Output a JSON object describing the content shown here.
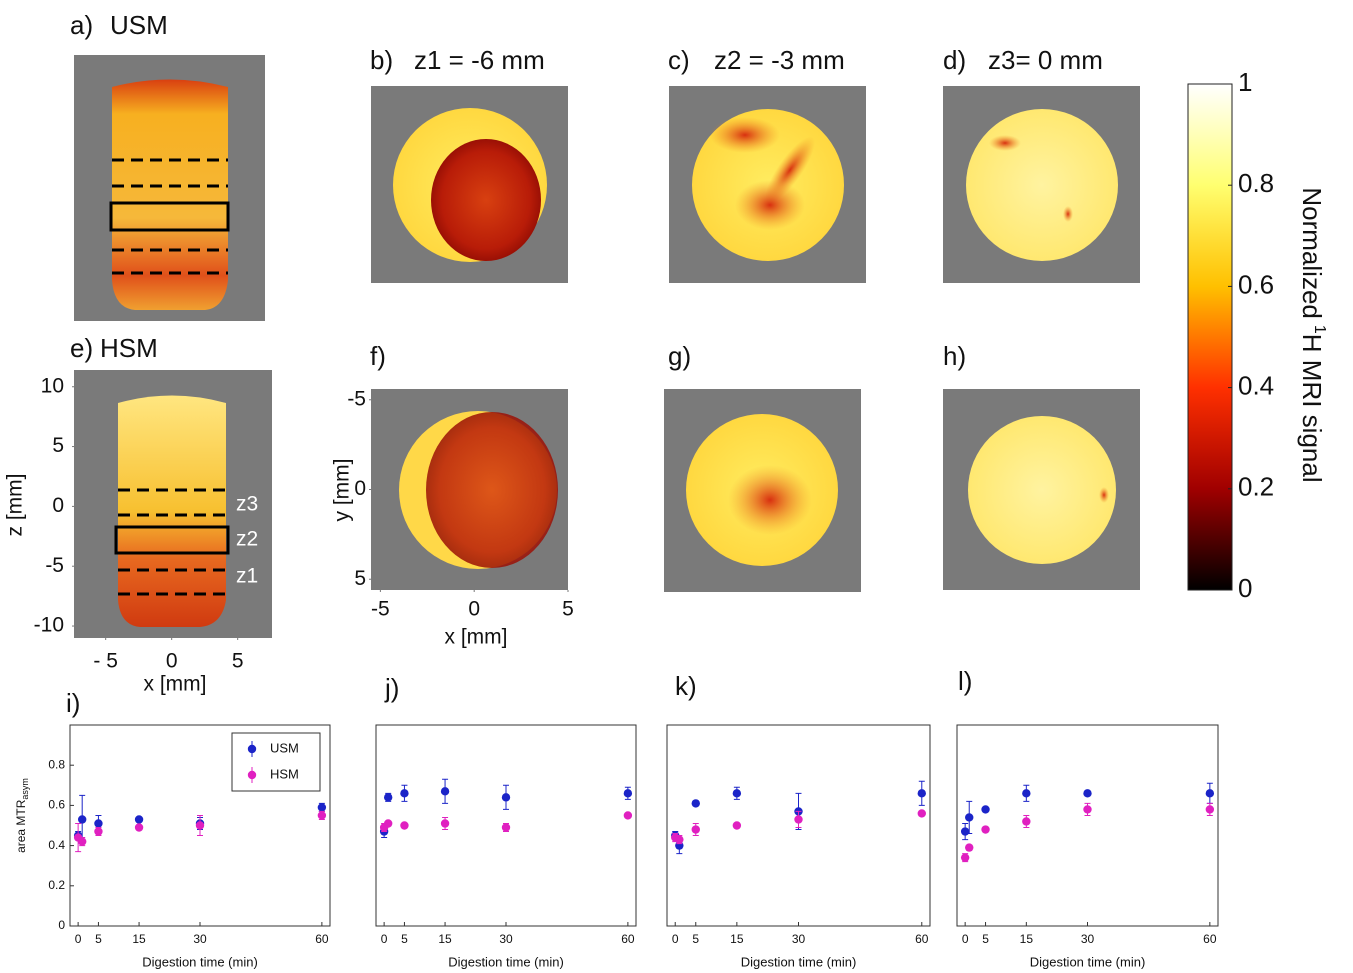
{
  "panels": {
    "a": {
      "label": "a)",
      "title": "USM"
    },
    "b": {
      "label": "b)",
      "title": "z1 = -6 mm"
    },
    "c": {
      "label": "c)",
      "title": "z2 = -3 mm"
    },
    "d": {
      "label": "d)",
      "title": "z3= 0 mm"
    },
    "e": {
      "label": "e)",
      "title": "HSM",
      "zlim": [
        -11,
        11.4
      ],
      "zticks": [
        10,
        5,
        0,
        -5,
        -10
      ],
      "xlim": [
        -7.4,
        7.6
      ],
      "xticks": [
        {
          "value": -5,
          "label": "- 5"
        },
        0,
        5
      ],
      "x_label": "x [mm]",
      "z_label": "z [mm]",
      "slice_labels": [
        "z3",
        "z2",
        "z1"
      ]
    },
    "f": {
      "label": "f)",
      "ylim": [
        -5.6,
        5.6
      ],
      "yticks": [
        -5,
        0,
        5
      ],
      "xlim": [
        -5.5,
        5
      ],
      "xticks": [
        -5,
        0,
        5
      ],
      "x_label": "x [mm]",
      "y_label": "y [mm]"
    },
    "g": {
      "label": "g)"
    },
    "h": {
      "label": "h)"
    }
  },
  "colorbar": {
    "range": [
      0,
      1
    ],
    "ticks": [
      0,
      0.2,
      0.4,
      0.6,
      0.8,
      1
    ],
    "label": [
      "Normalized",
      "1",
      "H MRI signal"
    ]
  },
  "chart_data": [
    {
      "type": "scatter",
      "label": "i)",
      "x_label": "Digestion time (min)",
      "y_label": "area MTR",
      "y_label_subscript": "asym",
      "x": [
        0,
        1,
        5,
        15,
        30,
        60
      ],
      "xlim": [
        -2,
        62
      ],
      "xticks": [
        0,
        5,
        15,
        30,
        60
      ],
      "ylim": [
        0,
        1
      ],
      "yticks": [
        0,
        0.2,
        0.4,
        0.6,
        0.8
      ],
      "legend": "upper right",
      "series": [
        {
          "name": "USM",
          "color": "#1b24c8",
          "values": [
            0.45,
            0.53,
            0.51,
            0.53,
            0.51,
            0.59
          ],
          "errors": [
            0.02,
            0.12,
            0.04,
            0.01,
            0.03,
            0.02
          ]
        },
        {
          "name": "HSM",
          "color": "#e020c0",
          "values": [
            0.44,
            0.42,
            0.47,
            0.49,
            0.5,
            0.55
          ],
          "errors": [
            0.07,
            0.02,
            0.02,
            0.01,
            0.05,
            0.02
          ]
        }
      ]
    },
    {
      "type": "scatter",
      "label": "j)",
      "x_label": "Digestion time (min)",
      "x": [
        0,
        1,
        5,
        15,
        30,
        60
      ],
      "xlim": [
        -2,
        62
      ],
      "xticks": [
        0,
        5,
        15,
        30,
        60
      ],
      "ylim": [
        0,
        1
      ],
      "series": [
        {
          "color": "#1b24c8",
          "values": [
            0.47,
            0.64,
            0.66,
            0.67,
            0.64,
            0.66
          ],
          "errors": [
            0.03,
            0.02,
            0.04,
            0.06,
            0.06,
            0.03
          ]
        },
        {
          "color": "#e020c0",
          "values": [
            0.49,
            0.51,
            0.5,
            0.51,
            0.49,
            0.55
          ],
          "errors": [
            0.02,
            0.01,
            0.01,
            0.03,
            0.02,
            0.01
          ]
        }
      ]
    },
    {
      "type": "scatter",
      "label": "k)",
      "x_label": "Digestion time (min)",
      "x": [
        0,
        1,
        5,
        15,
        30,
        60
      ],
      "xlim": [
        -2,
        62
      ],
      "xticks": [
        0,
        5,
        15,
        30,
        60
      ],
      "ylim": [
        0,
        1
      ],
      "series": [
        {
          "color": "#1b24c8",
          "values": [
            0.45,
            0.4,
            0.61,
            0.66,
            0.57,
            0.66
          ],
          "errors": [
            0.02,
            0.04,
            0.01,
            0.03,
            0.09,
            0.06
          ]
        },
        {
          "color": "#e020c0",
          "values": [
            0.44,
            0.43,
            0.48,
            0.5,
            0.53,
            0.56
          ],
          "errors": [
            0.02,
            0.02,
            0.03,
            0.01,
            0.04,
            0.01
          ]
        }
      ]
    },
    {
      "type": "scatter",
      "label": "l)",
      "x_label": "Digestion time (min)",
      "x": [
        0,
        1,
        5,
        15,
        30,
        60
      ],
      "xlim": [
        -2,
        62
      ],
      "xticks": [
        0,
        5,
        15,
        30,
        60
      ],
      "ylim": [
        0,
        1
      ],
      "series": [
        {
          "color": "#1b24c8",
          "values": [
            0.47,
            0.54,
            0.58,
            0.66,
            0.66,
            0.66
          ],
          "errors": [
            0.04,
            0.08,
            0.01,
            0.04,
            0.01,
            0.05
          ]
        },
        {
          "color": "#e020c0",
          "values": [
            0.34,
            0.39,
            0.48,
            0.52,
            0.58,
            0.58
          ],
          "errors": [
            0.02,
            0.01,
            0.01,
            0.03,
            0.03,
            0.03
          ]
        }
      ]
    }
  ]
}
